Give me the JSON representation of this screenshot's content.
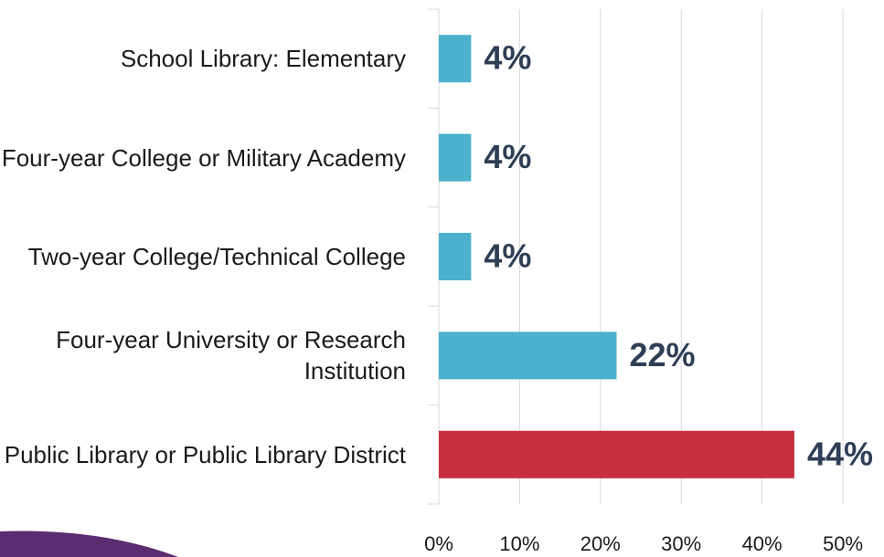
{
  "chart_data": {
    "type": "bar",
    "orientation": "horizontal",
    "categories": [
      "School Library: Elementary",
      "Four-year College or Military Academy",
      "Two-year College/Technical College",
      "Four-year University or Research Institution",
      "Public Library or Public Library District"
    ],
    "values": [
      4,
      4,
      4,
      22,
      44
    ],
    "value_labels": [
      "4%",
      "4%",
      "4%",
      "22%",
      "44%"
    ],
    "colors": [
      "#4bb1cc",
      "#4bb1cc",
      "#4bb1cc",
      "#4bb1cc",
      "#c8303f"
    ],
    "xlim": [
      0,
      50
    ],
    "xticks": [
      {
        "value": 0,
        "label": "0%"
      },
      {
        "value": 10,
        "label": "10%"
      },
      {
        "value": 20,
        "label": "20%"
      },
      {
        "value": 30,
        "label": "30%"
      },
      {
        "value": 40,
        "label": "40%"
      },
      {
        "value": 50,
        "label": "50%"
      }
    ],
    "grid": true
  }
}
